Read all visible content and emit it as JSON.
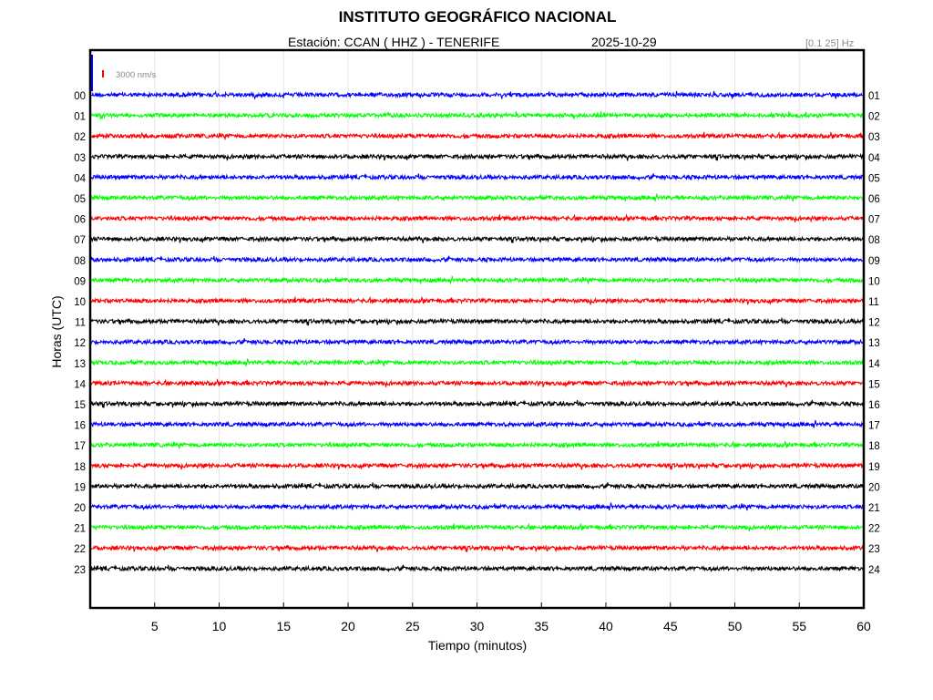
{
  "header": {
    "title": "INSTITUTO GEOGRÁFICO NACIONAL",
    "station": "Estación:  CCAN ( HHZ ) - TENERIFE",
    "date": "2025-10-29",
    "filter": "[0.1 25] Hz"
  },
  "chart_data": {
    "type": "line",
    "title": "INSTITUTO GEOGRÁFICO NACIONAL",
    "xlabel": "Tiempo (minutos)",
    "ylabel": "Horas (UTC)",
    "xlim": [
      0,
      60
    ],
    "x_ticks": [
      5,
      10,
      15,
      20,
      25,
      30,
      35,
      40,
      45,
      50,
      55,
      60
    ],
    "left_tick_labels": [
      "00",
      "01",
      "02",
      "03",
      "04",
      "05",
      "06",
      "07",
      "08",
      "09",
      "10",
      "11",
      "12",
      "13",
      "14",
      "15",
      "16",
      "17",
      "18",
      "19",
      "20",
      "21",
      "22",
      "23"
    ],
    "right_tick_labels": [
      "01",
      "02",
      "03",
      "04",
      "05",
      "06",
      "07",
      "08",
      "09",
      "10",
      "11",
      "12",
      "13",
      "14",
      "15",
      "16",
      "17",
      "18",
      "19",
      "20",
      "21",
      "22",
      "23",
      "24"
    ],
    "scale_label": "3000 nm/s",
    "trace_colors": [
      "#0000ff",
      "#00ff00",
      "#ff0000",
      "#000000"
    ],
    "grid": true,
    "series_count": 24
  }
}
